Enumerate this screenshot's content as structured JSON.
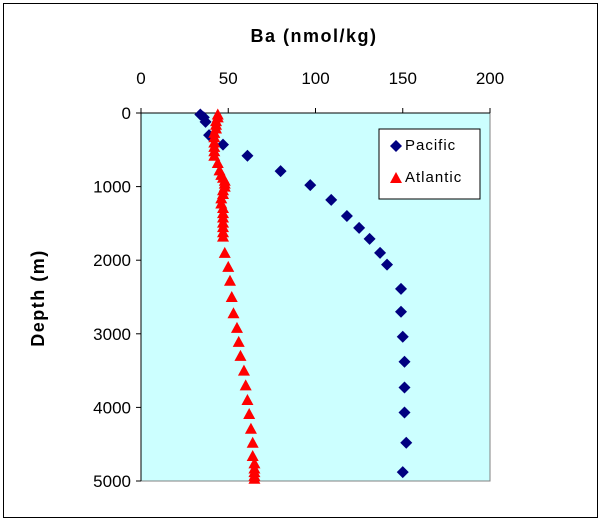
{
  "chart_data": {
    "type": "scatter",
    "title": "Ba (nmol/kg)",
    "xlabel": "",
    "ylabel": "Depth (m)",
    "x_axis_position": "top",
    "y_axis_inverted": true,
    "xlim": [
      0,
      200
    ],
    "ylim": [
      0,
      5000
    ],
    "x_ticks": [
      "0",
      "50",
      "100",
      "150",
      "200"
    ],
    "y_ticks": [
      "0",
      "1000",
      "2000",
      "3000",
      "4000",
      "5000"
    ],
    "plot_background": "#ccffff",
    "grid": false,
    "legend_position": "top-right",
    "series": [
      {
        "name": "Pacific",
        "marker": "diamond",
        "color": "#000080",
        "points": [
          [
            34,
            20
          ],
          [
            36,
            60
          ],
          [
            37,
            120
          ],
          [
            39,
            300
          ],
          [
            47,
            430
          ],
          [
            61,
            580
          ],
          [
            80,
            790
          ],
          [
            97,
            980
          ],
          [
            109,
            1180
          ],
          [
            118,
            1400
          ],
          [
            125,
            1560
          ],
          [
            131,
            1710
          ],
          [
            137,
            1900
          ],
          [
            141,
            2060
          ],
          [
            149,
            2390
          ],
          [
            149,
            2700
          ],
          [
            150,
            3040
          ],
          [
            151,
            3380
          ],
          [
            151,
            3730
          ],
          [
            151,
            4070
          ],
          [
            152,
            4480
          ],
          [
            150,
            4880
          ]
        ]
      },
      {
        "name": "Atlantic",
        "marker": "triangle",
        "color": "#ff0000",
        "points": [
          [
            44,
            20
          ],
          [
            44,
            60
          ],
          [
            43,
            110
          ],
          [
            43,
            160
          ],
          [
            43,
            210
          ],
          [
            42,
            270
          ],
          [
            42,
            330
          ],
          [
            42,
            400
          ],
          [
            42,
            460
          ],
          [
            42,
            520
          ],
          [
            42,
            580
          ],
          [
            44,
            680
          ],
          [
            45,
            780
          ],
          [
            46,
            840
          ],
          [
            47,
            880
          ],
          [
            48,
            920
          ],
          [
            48,
            960
          ],
          [
            48,
            1000
          ],
          [
            47,
            1050
          ],
          [
            47,
            1100
          ],
          [
            46,
            1160
          ],
          [
            46,
            1230
          ],
          [
            47,
            1290
          ],
          [
            47,
            1360
          ],
          [
            47,
            1420
          ],
          [
            47,
            1490
          ],
          [
            47,
            1550
          ],
          [
            47,
            1620
          ],
          [
            47,
            1680
          ],
          [
            48,
            1900
          ],
          [
            50,
            2090
          ],
          [
            51,
            2280
          ],
          [
            52,
            2500
          ],
          [
            53,
            2720
          ],
          [
            55,
            2920
          ],
          [
            56,
            3110
          ],
          [
            57,
            3300
          ],
          [
            59,
            3500
          ],
          [
            60,
            3700
          ],
          [
            61,
            3900
          ],
          [
            62,
            4090
          ],
          [
            63,
            4290
          ],
          [
            64,
            4480
          ],
          [
            64,
            4660
          ],
          [
            65,
            4760
          ],
          [
            65,
            4830
          ],
          [
            65,
            4880
          ],
          [
            65,
            4930
          ],
          [
            65,
            4970
          ]
        ]
      }
    ]
  }
}
